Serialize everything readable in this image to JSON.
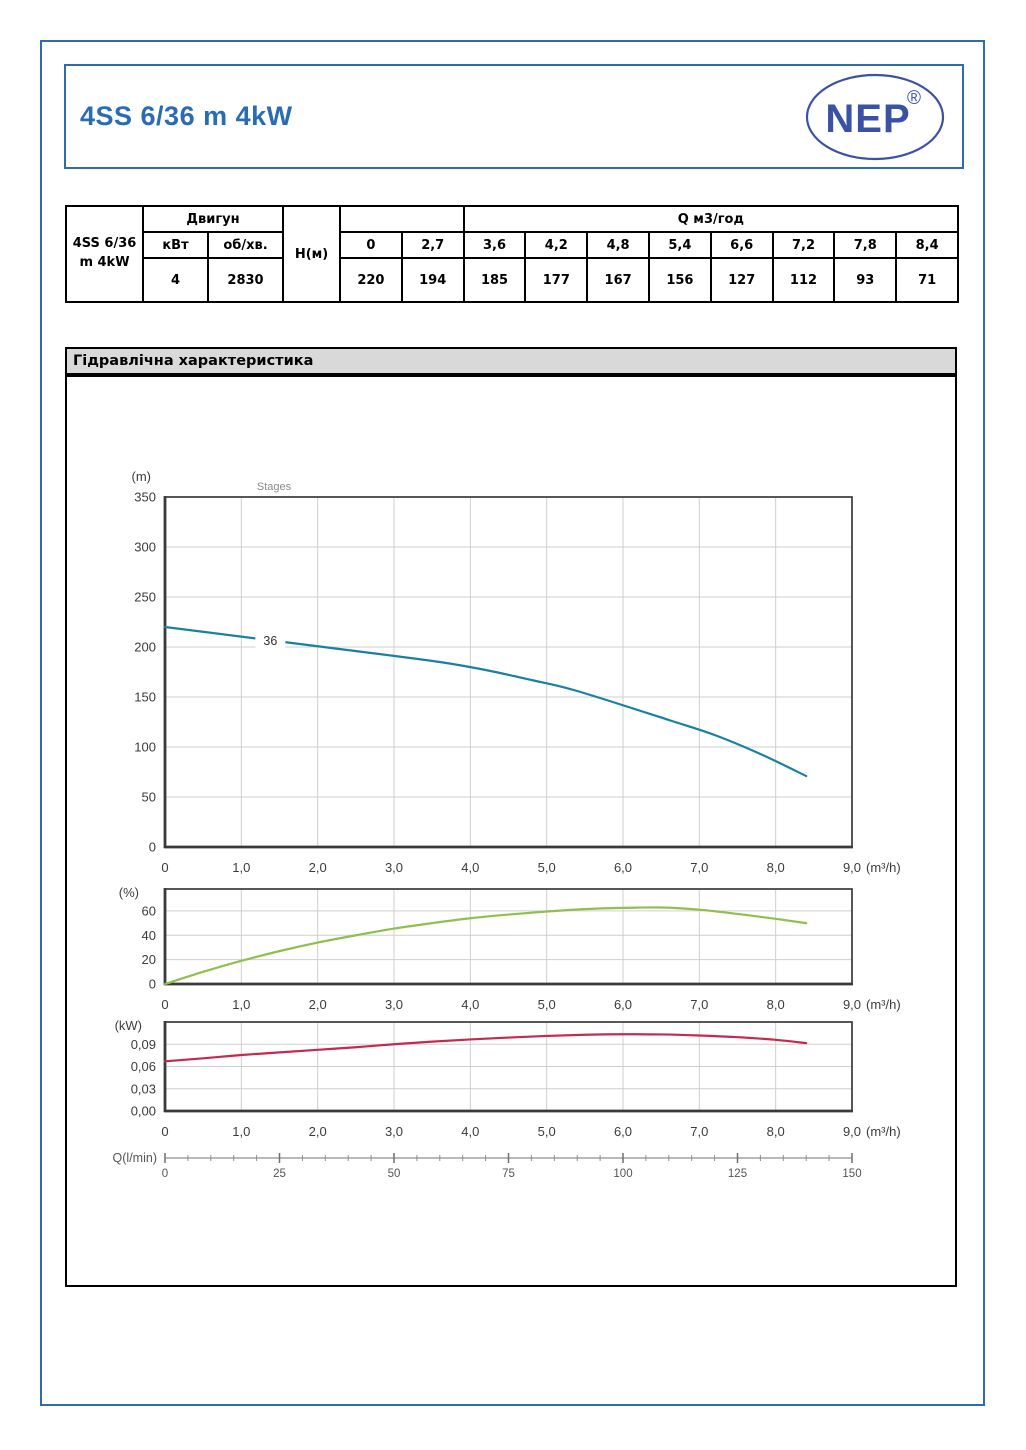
{
  "colors": {
    "frame": "#2e6da8",
    "title": "#2a6cb3",
    "logo": "#3a52a5",
    "section_bg": "#d9d9d9",
    "head_curve": "#1b7fa4",
    "efficiency_curve": "#8fbf4d",
    "power_curve": "#c5294f"
  },
  "header": {
    "title": "4SS 6/36 m 4kW",
    "logo": {
      "text": "NEP",
      "reg": "®"
    }
  },
  "spec_table": {
    "model": "4SS 6/36 m 4kW",
    "motor_group_label": "Двигун",
    "power_unit_label": "кВт",
    "speed_unit_label": "об/хв.",
    "power_value": "4",
    "speed_value": "2830",
    "head_row_label": "Н(м)",
    "flow_header": "Q м3/год",
    "flow_values": [
      "0",
      "2,7",
      "3,6",
      "4,2",
      "4,8",
      "5,4",
      "6,6",
      "7,2",
      "7,8",
      "8,4"
    ],
    "head_values": [
      "220",
      "194",
      "185",
      "177",
      "167",
      "156",
      "127",
      "112",
      "93",
      "71"
    ]
  },
  "section": {
    "title": "Гідравлічна характеристика"
  },
  "chart_data": [
    {
      "type": "line",
      "name": "head",
      "title": "Stages",
      "curve_label": "36",
      "ylabel": "(m)",
      "x_unit": "(m³/h)",
      "color": "#1b7fa4",
      "x": [
        0,
        2.7,
        3.6,
        4.2,
        4.8,
        5.4,
        6.6,
        7.2,
        7.8,
        8.4
      ],
      "y": [
        220,
        194,
        185,
        177,
        167,
        156,
        127,
        112,
        93,
        71
      ],
      "xlim": [
        0,
        9
      ],
      "ylim": [
        0,
        350
      ],
      "xticks": [
        0,
        1,
        2,
        3,
        4,
        5,
        6,
        7,
        8,
        9
      ],
      "xtick_labels": [
        "0",
        "1,0",
        "2,0",
        "3,0",
        "4,0",
        "5,0",
        "6,0",
        "7,0",
        "8,0",
        "9,0"
      ],
      "yticks": [
        0,
        50,
        100,
        150,
        200,
        250,
        300,
        350
      ],
      "ytick_labels": [
        "0",
        "50",
        "100",
        "150",
        "200",
        "250",
        "300",
        "350"
      ],
      "grid": true,
      "legend": "none"
    },
    {
      "type": "line",
      "name": "efficiency",
      "ylabel": "(%)",
      "x_unit": "(m³/h)",
      "color": "#8fbf4d",
      "x": [
        0,
        0.5,
        1,
        1.5,
        2,
        2.5,
        3,
        3.5,
        4,
        4.5,
        5,
        5.5,
        6,
        6.5,
        7,
        7.5,
        8,
        8.4
      ],
      "y": [
        0,
        10,
        19,
        27,
        34,
        40,
        45.5,
        50,
        54,
        57,
        59.5,
        61.5,
        62.5,
        62.8,
        61,
        57.5,
        53.5,
        50
      ],
      "xlim": [
        0,
        9
      ],
      "ylim": [
        0,
        78
      ],
      "xticks": [
        0,
        1,
        2,
        3,
        4,
        5,
        6,
        7,
        8,
        9
      ],
      "xtick_labels": [
        "0",
        "1,0",
        "2,0",
        "3,0",
        "4,0",
        "5,0",
        "6,0",
        "7,0",
        "8,0",
        "9,0"
      ],
      "yticks": [
        0,
        20,
        40,
        60
      ],
      "ytick_labels": [
        "0",
        "20",
        "40",
        "60"
      ],
      "grid": true,
      "legend": "none"
    },
    {
      "type": "line",
      "name": "power",
      "ylabel": "(kW)",
      "x_unit": "(m³/h)",
      "color": "#c5294f",
      "x": [
        0,
        0.5,
        1,
        1.5,
        2,
        2.5,
        3,
        3.5,
        4,
        4.5,
        5,
        5.5,
        6,
        6.5,
        7,
        7.5,
        8,
        8.4
      ],
      "y": [
        0.067,
        0.071,
        0.0755,
        0.079,
        0.0825,
        0.086,
        0.09,
        0.0935,
        0.0965,
        0.099,
        0.1012,
        0.1028,
        0.1035,
        0.1032,
        0.1018,
        0.0995,
        0.096,
        0.0915
      ],
      "xlim": [
        0,
        9
      ],
      "ylim": [
        0,
        0.12
      ],
      "xticks": [
        0,
        1,
        2,
        3,
        4,
        5,
        6,
        7,
        8,
        9
      ],
      "xtick_labels": [
        "0",
        "1,0",
        "2,0",
        "3,0",
        "4,0",
        "5,0",
        "6,0",
        "7,0",
        "8,0",
        "9,0"
      ],
      "yticks": [
        0,
        0.03,
        0.06,
        0.09
      ],
      "ytick_labels": [
        "0,00",
        "0,03",
        "0,06",
        "0,09"
      ],
      "grid": true,
      "legend": "none"
    }
  ],
  "flow_ruler": {
    "label": "Q(l/min)",
    "xlim": [
      0,
      150
    ],
    "major_ticks": [
      0,
      25,
      50,
      75,
      100,
      125,
      150
    ],
    "tick_labels": [
      "0",
      "25",
      "50",
      "75",
      "100",
      "125",
      "150"
    ],
    "minor_step": 5
  }
}
